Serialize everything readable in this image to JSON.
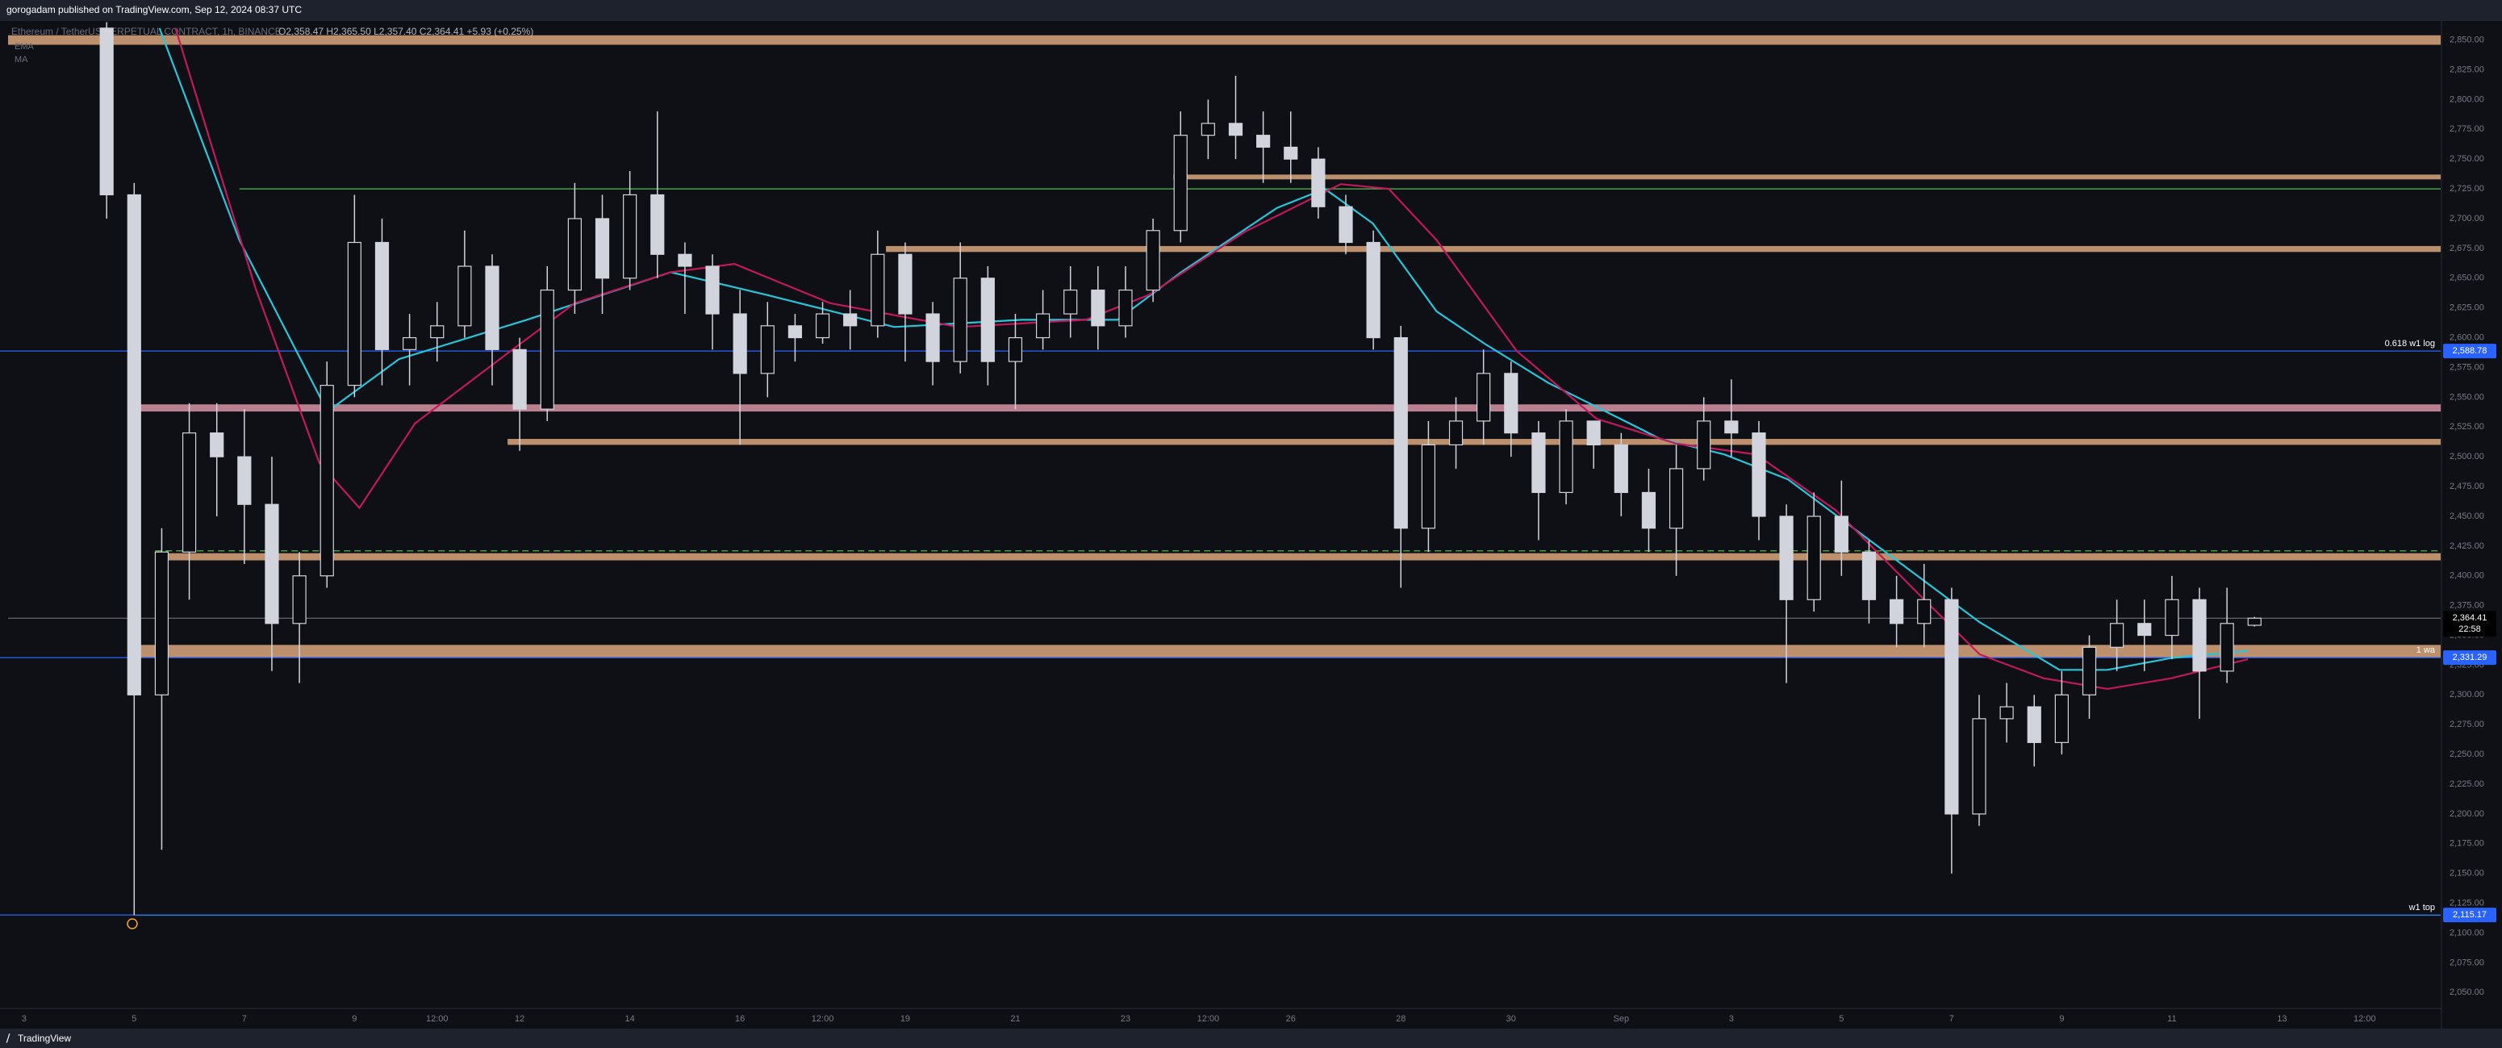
{
  "chart_data": {
    "type": "candlestick",
    "publisher": "gorogadam published on TradingView.com, Sep 12, 2024 08:37 UTC",
    "symbol": "Ethereum / TetherUS PERPETUAL CONTRACT, 1h, BINANCE",
    "legend_values": "O2,358.47 H2,365.50 L2,357.40 C2,364.41 +5.93 (+0.25%)",
    "brand": "TradingView",
    "up_color": "#d1d4dc",
    "down_color": "#0b0d12",
    "x": [
      1.5,
      2.0,
      2.5,
      3.0,
      3.5,
      4.0,
      4.5,
      5.0,
      5.5,
      6.0,
      6.5,
      7.0,
      7.5,
      8.0,
      8.5,
      9.0,
      9.5,
      10.0,
      10.5,
      11.0,
      11.5,
      12.0,
      12.5,
      13.0,
      13.5,
      14.0,
      14.5,
      15.0,
      15.5,
      16.0,
      16.5,
      17.0,
      17.5,
      18.0,
      18.5,
      19.0,
      19.5,
      20.0,
      20.5,
      21.0,
      21.5,
      22.0,
      22.5,
      23.0,
      23.5,
      24.0,
      24.5,
      25.0,
      25.5,
      26.0,
      26.5,
      27.0,
      27.5,
      28.0,
      28.5,
      29.0,
      29.5,
      30.0,
      30.5,
      31.0,
      31.5,
      32.0,
      32.5,
      33.0,
      33.5,
      34.0,
      34.5,
      35.0,
      35.5,
      36.0,
      36.5,
      37.0,
      37.5,
      38.0,
      38.5,
      39.0,
      39.5,
      40.0,
      40.5
    ],
    "open": [
      2860,
      2720,
      2300,
      2420,
      2520,
      2500,
      2460,
      2360,
      2400,
      2560,
      2680,
      2590,
      2600,
      2610,
      2660,
      2590,
      2540,
      2640,
      2700,
      2650,
      2720,
      2670,
      2660,
      2620,
      2570,
      2610,
      2600,
      2620,
      2610,
      2670,
      2620,
      2580,
      2650,
      2580,
      2600,
      2620,
      2640,
      2610,
      2640,
      2690,
      2770,
      2780,
      2770,
      2760,
      2750,
      2710,
      2680,
      2600,
      2440,
      2510,
      2530,
      2570,
      2520,
      2470,
      2530,
      2510,
      2470,
      2440,
      2490,
      2530,
      2520,
      2450,
      2380,
      2450,
      2420,
      2380,
      2360,
      2380,
      2200,
      2280,
      2290,
      2260,
      2300,
      2340,
      2360,
      2350,
      2380,
      2320,
      2358.47
    ],
    "high": [
      2865,
      2730,
      2440,
      2545,
      2545,
      2540,
      2500,
      2420,
      2580,
      2720,
      2700,
      2620,
      2630,
      2690,
      2670,
      2600,
      2660,
      2730,
      2720,
      2740,
      2790,
      2680,
      2670,
      2640,
      2630,
      2620,
      2630,
      2640,
      2690,
      2680,
      2630,
      2680,
      2660,
      2620,
      2640,
      2660,
      2660,
      2660,
      2700,
      2790,
      2800,
      2820,
      2790,
      2790,
      2760,
      2720,
      2690,
      2610,
      2530,
      2550,
      2590,
      2580,
      2530,
      2540,
      2530,
      2520,
      2490,
      2510,
      2550,
      2565,
      2530,
      2460,
      2470,
      2480,
      2430,
      2400,
      2410,
      2390,
      2300,
      2310,
      2300,
      2320,
      2350,
      2380,
      2380,
      2400,
      2390,
      2390,
      2365.5
    ],
    "low": [
      2700,
      2115,
      2170,
      2380,
      2450,
      2410,
      2320,
      2310,
      2390,
      2550,
      2560,
      2560,
      2580,
      2600,
      2560,
      2505,
      2530,
      2620,
      2620,
      2640,
      2650,
      2620,
      2590,
      2510,
      2550,
      2580,
      2595,
      2590,
      2600,
      2580,
      2560,
      2570,
      2560,
      2540,
      2590,
      2600,
      2590,
      2600,
      2630,
      2680,
      2750,
      2750,
      2730,
      2730,
      2700,
      2670,
      2590,
      2390,
      2420,
      2490,
      2510,
      2500,
      2430,
      2460,
      2490,
      2450,
      2420,
      2400,
      2480,
      2500,
      2430,
      2310,
      2370,
      2400,
      2360,
      2340,
      2340,
      2150,
      2190,
      2260,
      2240,
      2250,
      2280,
      2320,
      2320,
      2330,
      2280,
      2310,
      2357.4
    ],
    "close": [
      2720,
      2300,
      2420,
      2520,
      2500,
      2460,
      2360,
      2400,
      2560,
      2680,
      2590,
      2600,
      2610,
      2660,
      2590,
      2540,
      2640,
      2700,
      2650,
      2720,
      2670,
      2660,
      2620,
      2570,
      2610,
      2600,
      2620,
      2610,
      2670,
      2620,
      2580,
      2650,
      2580,
      2600,
      2620,
      2640,
      2610,
      2640,
      2690,
      2770,
      2780,
      2770,
      2760,
      2750,
      2710,
      2680,
      2600,
      2440,
      2510,
      2530,
      2570,
      2520,
      2470,
      2530,
      2510,
      2470,
      2440,
      2490,
      2530,
      2520,
      2450,
      2380,
      2450,
      2420,
      2380,
      2360,
      2380,
      2200,
      2280,
      2290,
      2260,
      2300,
      2340,
      2360,
      2350,
      2380,
      2320,
      2360,
      2364.41
    ],
    "indicators": [
      {
        "name": "EMA",
        "color": "#26c6da",
        "x": [
          2.46,
          3.91,
          5.51,
          6.81,
          9.13,
          11.74,
          13.48,
          15.8,
          18.12,
          19.86,
          21.01,
          22.75,
          23.62,
          24.49,
          25.65,
          26.52,
          27.68,
          28.55,
          29.71,
          30.87,
          32.03,
          33.19,
          34.35,
          35.51,
          36.96,
          37.83,
          38.99,
          40.38
        ],
        "values": [
          2860,
          2682,
          2538,
          2582,
          2615,
          2655,
          2636,
          2609,
          2615,
          2615,
          2655,
          2709,
          2725,
          2696,
          2622,
          2595,
          2562,
          2542,
          2515,
          2502,
          2481,
          2441,
          2401,
          2361,
          2321,
          2321,
          2331,
          2337
        ]
      },
      {
        "name": "MA",
        "color": "#c2185b",
        "x": [
          2.75,
          4.2,
          5.36,
          6.09,
          7.1,
          8.84,
          10.0,
          11.74,
          12.9,
          14.64,
          16.96,
          19.28,
          20.43,
          22.17,
          23.91,
          24.78,
          25.65,
          27.1,
          28.55,
          30.0,
          31.45,
          32.9,
          34.35,
          35.51,
          36.67,
          37.83,
          38.99,
          40.38
        ],
        "values": [
          2860,
          2642,
          2495,
          2457,
          2528,
          2589,
          2629,
          2655,
          2662,
          2629,
          2609,
          2615,
          2636,
          2689,
          2729,
          2725,
          2682,
          2589,
          2532,
          2511,
          2502,
          2455,
          2387,
          2334,
          2314,
          2305,
          2314,
          2330
        ]
      }
    ],
    "zones": [
      {
        "low": 2846,
        "high": 2854,
        "from": -0.29,
        "color": "#f7b98b"
      },
      {
        "low": 2733,
        "high": 2737,
        "from": 20.87,
        "color": "#f7b98b"
      },
      {
        "low": 2672,
        "high": 2677,
        "from": 15.65,
        "color": "#f7b98b"
      },
      {
        "low": 2538,
        "high": 2544,
        "from": 2.03,
        "color": "#f4a6b8"
      },
      {
        "low": 2510,
        "high": 2515,
        "from": 8.78,
        "color": "#f7b98b"
      },
      {
        "low": 2413,
        "high": 2419,
        "from": 2.46,
        "color": "#f7b98b"
      },
      {
        "low": 2331,
        "high": 2342,
        "from": 2.03,
        "color": "#f7b98b"
      }
    ],
    "lines": [
      {
        "value": 2725,
        "from": 3.91,
        "color": "#43a047",
        "dashed": false
      },
      {
        "value": 2421,
        "from": 2.38,
        "color": "#43a047",
        "dashed": true
      },
      {
        "value": 2115,
        "from": 2.03,
        "color": "#43a047",
        "dashed": false
      }
    ],
    "levels": [
      {
        "name": "0.618 w1 log",
        "price": {
          "value": 2588.78,
          "label": "2,588.78"
        },
        "color": "#2962ff"
      },
      {
        "name": "1 wa",
        "price": {
          "value": 2331.29,
          "label": "2,331.29"
        },
        "color": "#2962ff"
      },
      {
        "name": "w1 top",
        "price": {
          "value": 2115.17,
          "label": "2,115.17"
        },
        "color": "#2962ff"
      }
    ],
    "last_price": {
      "value": 2364.41,
      "label": "2,364.41",
      "countdown": "22:58"
    },
    "xlim": [
      -0.29,
      43.88
    ],
    "xticks": [
      {
        "value": 0,
        "label": "3"
      },
      {
        "value": 2,
        "label": "5"
      },
      {
        "value": 4,
        "label": "7"
      },
      {
        "value": 6,
        "label": "9"
      },
      {
        "value": 7.5,
        "label": "12:00"
      },
      {
        "value": 9,
        "label": "12"
      },
      {
        "value": 11,
        "label": "14"
      },
      {
        "value": 13,
        "label": "16"
      },
      {
        "value": 14.5,
        "label": "12:00"
      },
      {
        "value": 16,
        "label": "19"
      },
      {
        "value": 18,
        "label": "21"
      },
      {
        "value": 20,
        "label": "23"
      },
      {
        "value": 21.5,
        "label": "12:00"
      },
      {
        "value": 23,
        "label": "26"
      },
      {
        "value": 25,
        "label": "28"
      },
      {
        "value": 27,
        "label": "30"
      },
      {
        "value": 29,
        "label": "Sep"
      },
      {
        "value": 31,
        "label": "3"
      },
      {
        "value": 33,
        "label": "5"
      },
      {
        "value": 35,
        "label": "7"
      },
      {
        "value": 37,
        "label": "9"
      },
      {
        "value": 39,
        "label": "11"
      },
      {
        "value": 41,
        "label": "13"
      },
      {
        "value": 42.5,
        "label": "12:00"
      }
    ],
    "ylim": [
      2038,
      2866
    ],
    "yticks": [
      {
        "value": 2050,
        "label": "2,050.00"
      },
      {
        "value": 2075,
        "label": "2,075.00"
      },
      {
        "value": 2100,
        "label": "2,100.00"
      },
      {
        "value": 2125,
        "label": "2,125.00"
      },
      {
        "value": 2150,
        "label": "2,150.00"
      },
      {
        "value": 2175,
        "label": "2,175.00"
      },
      {
        "value": 2200,
        "label": "2,200.00"
      },
      {
        "value": 2225,
        "label": "2,225.00"
      },
      {
        "value": 2250,
        "label": "2,250.00"
      },
      {
        "value": 2275,
        "label": "2,275.00"
      },
      {
        "value": 2300,
        "label": "2,300.00"
      },
      {
        "value": 2325,
        "label": "2,325.00"
      },
      {
        "value": 2350,
        "label": "2,350.00"
      },
      {
        "value": 2375,
        "label": "2,375.00"
      },
      {
        "value": 2400,
        "label": "2,400.00"
      },
      {
        "value": 2425,
        "label": "2,425.00"
      },
      {
        "value": 2450,
        "label": "2,450.00"
      },
      {
        "value": 2475,
        "label": "2,475.00"
      },
      {
        "value": 2500,
        "label": "2,500.00"
      },
      {
        "value": 2525,
        "label": "2,525.00"
      },
      {
        "value": 2550,
        "label": "2,550.00"
      },
      {
        "value": 2575,
        "label": "2,575.00"
      },
      {
        "value": 2600,
        "label": "2,600.00"
      },
      {
        "value": 2625,
        "label": "2,625.00"
      },
      {
        "value": 2650,
        "label": "2,650.00"
      },
      {
        "value": 2675,
        "label": "2,675.00"
      },
      {
        "value": 2700,
        "label": "2,700.00"
      },
      {
        "value": 2725,
        "label": "2,725.00"
      },
      {
        "value": 2750,
        "label": "2,750.00"
      },
      {
        "value": 2775,
        "label": "2,775.00"
      },
      {
        "value": 2800,
        "label": "2,800.00"
      },
      {
        "value": 2825,
        "label": "2,825.00"
      },
      {
        "value": 2850,
        "label": "2,850.00"
      }
    ]
  }
}
